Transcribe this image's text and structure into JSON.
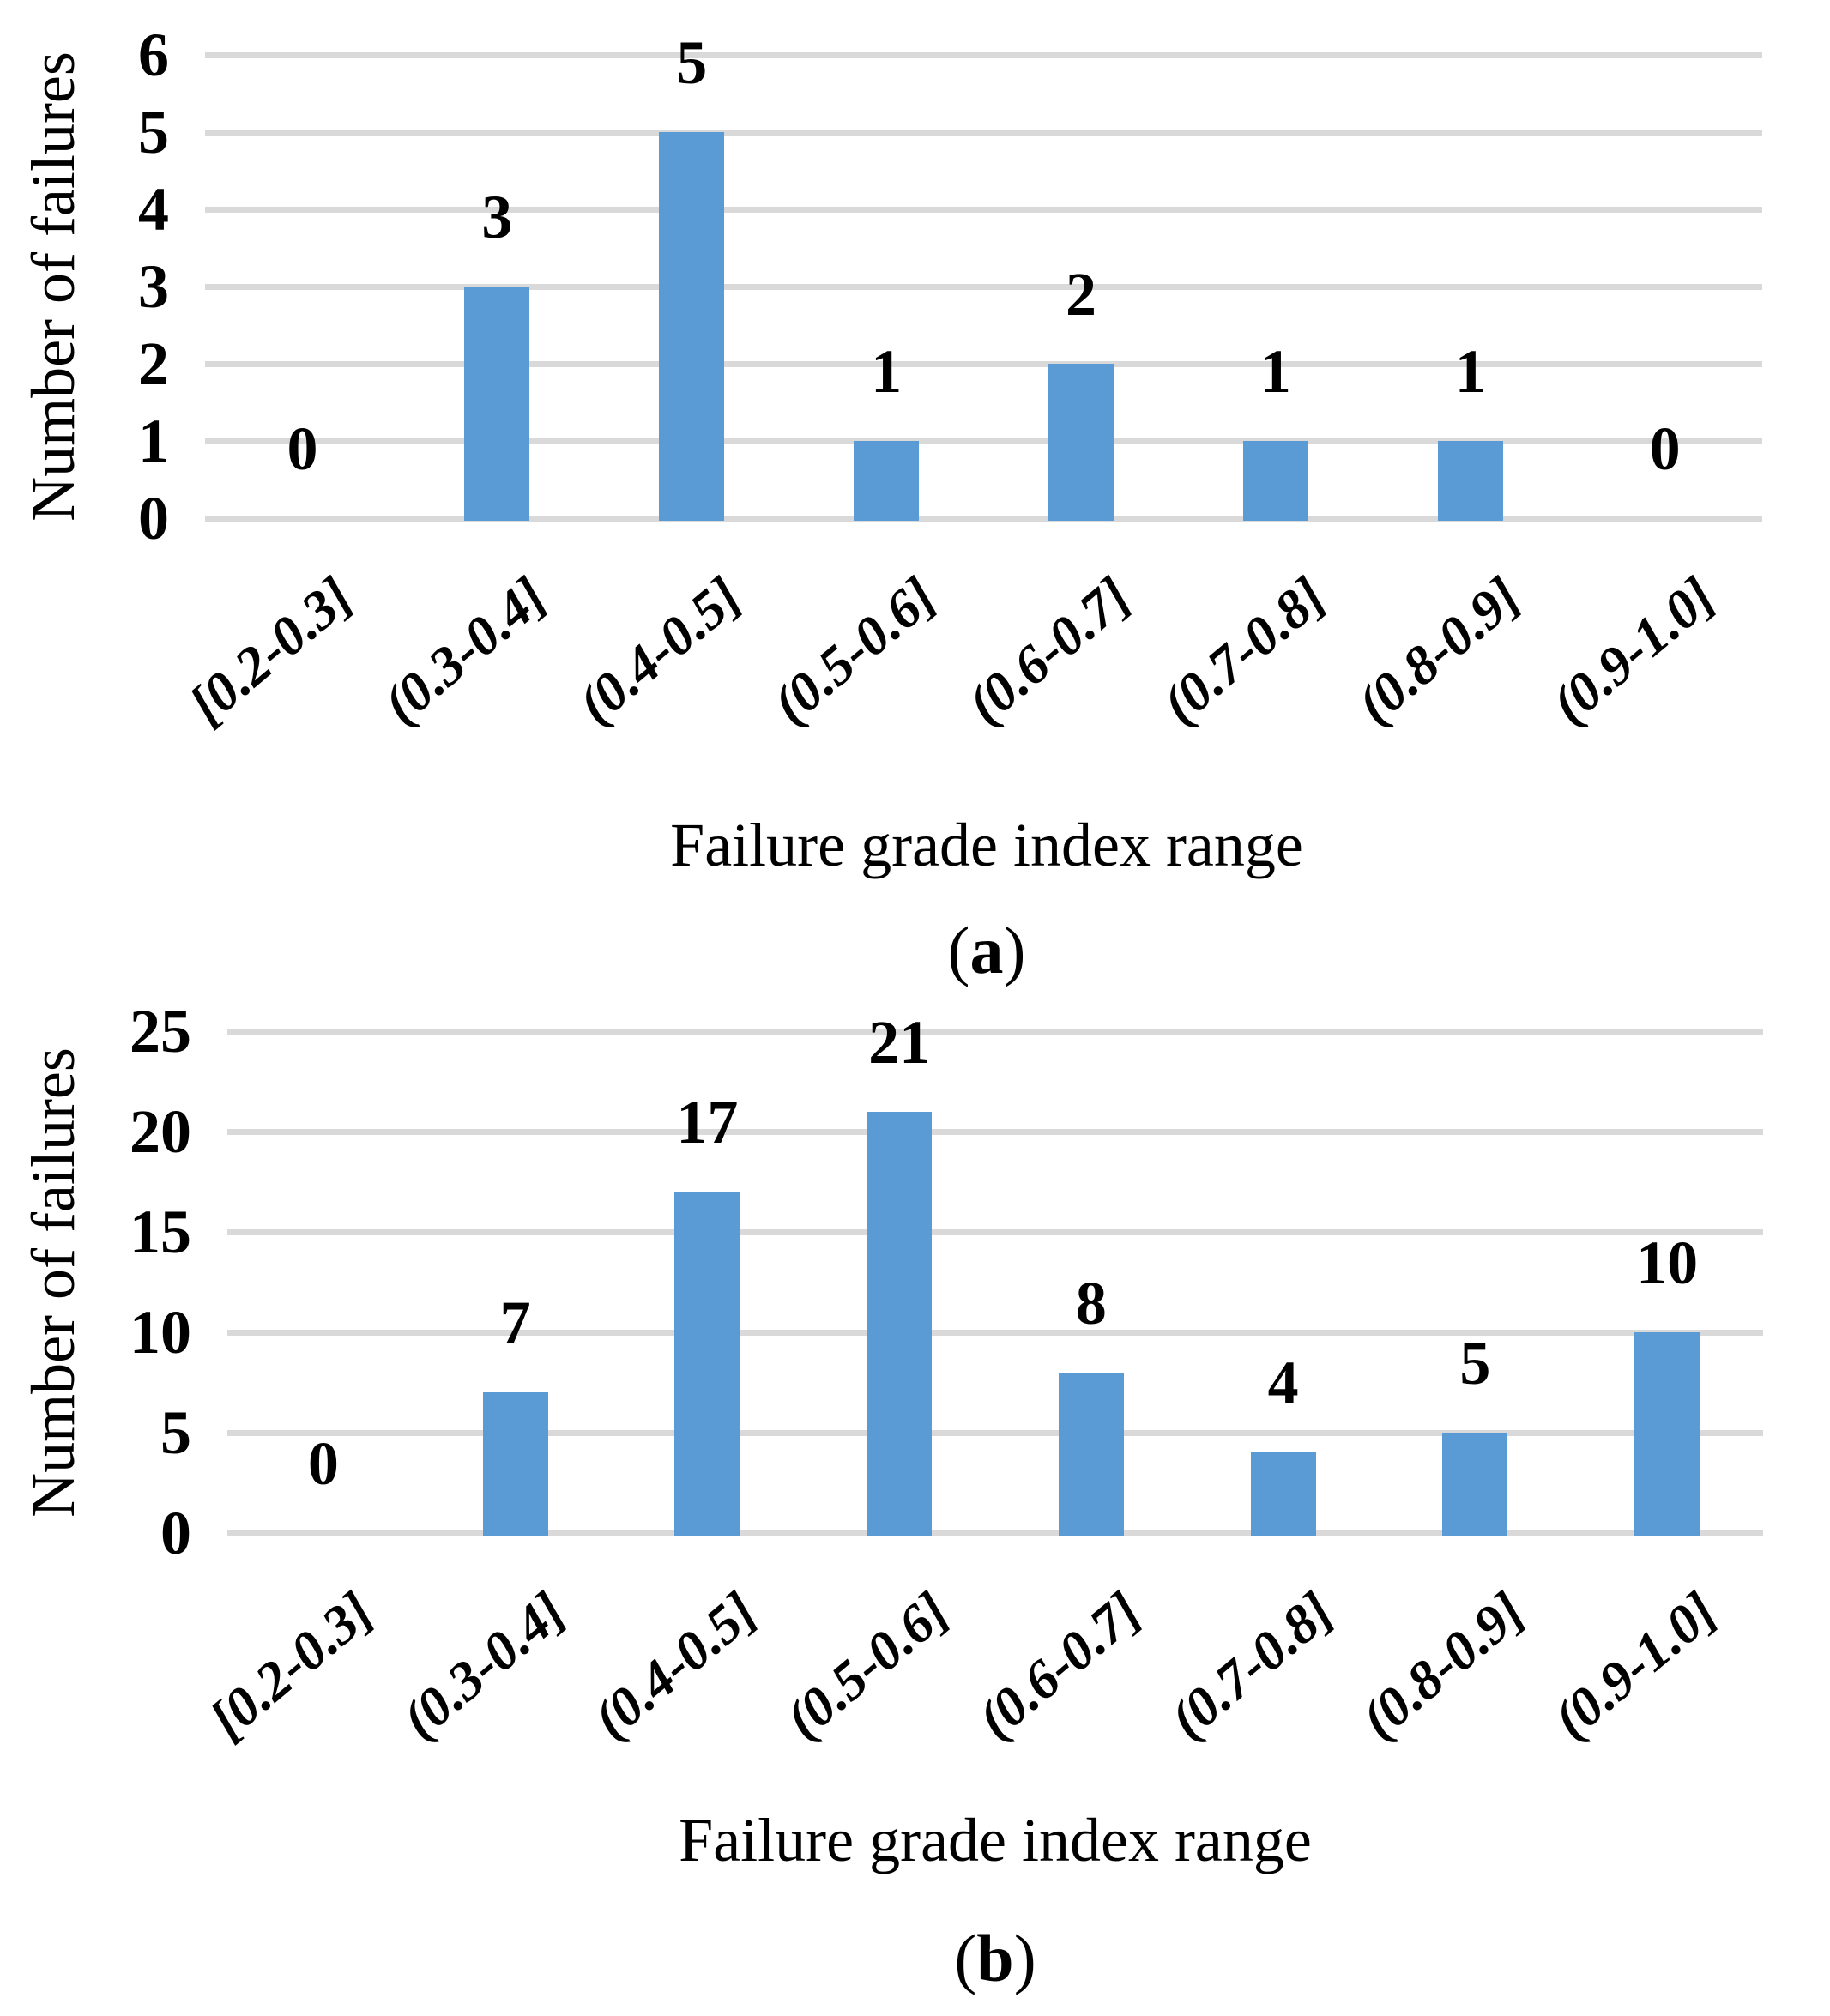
{
  "chart_data": [
    {
      "type": "bar",
      "panel": "a",
      "categories": [
        "[0.2-0.3]",
        "(0.3-0.4]",
        "(0.4-0.5]",
        "(0.5-0.6]",
        "(0.6-0.7]",
        "(0.7-0.8]",
        "(0.8-0.9]",
        "(0.9-1.0]"
      ],
      "values": [
        0,
        3,
        5,
        1,
        2,
        1,
        1,
        0
      ],
      "data_labels": [
        "0",
        "3",
        "5",
        "1",
        "2",
        "1",
        "1",
        "0"
      ],
      "xlabel": "Failure grade index range",
      "ylabel": "Number of failures",
      "ylim": [
        0,
        6
      ],
      "yticks": [
        0,
        1,
        2,
        3,
        4,
        5,
        6
      ],
      "grid": true,
      "legend": "none",
      "bar_color": "#5B9BD5",
      "gridline_color": "#D9D9D9",
      "caption": {
        "open": "(",
        "letter": "a",
        "close": ")"
      }
    },
    {
      "type": "bar",
      "panel": "b",
      "categories": [
        "[0.2-0.3]",
        "(0.3-0.4]",
        "(0.4-0.5]",
        "(0.5-0.6]",
        "(0.6-0.7]",
        "(0.7-0.8]",
        "(0.8-0.9]",
        "(0.9-1.0]"
      ],
      "values": [
        0,
        7,
        17,
        21,
        8,
        4,
        5,
        10
      ],
      "data_labels": [
        "0",
        "7",
        "17",
        "21",
        "8",
        "4",
        "5",
        "10"
      ],
      "xlabel": "Failure grade index range",
      "ylabel": "Number of failures",
      "ylim": [
        0,
        25
      ],
      "yticks": [
        0,
        5,
        10,
        15,
        20,
        25
      ],
      "grid": true,
      "legend": "none",
      "bar_color": "#5B9BD5",
      "gridline_color": "#D9D9D9",
      "caption": {
        "open": "(",
        "letter": "b",
        "close": ")"
      }
    }
  ]
}
